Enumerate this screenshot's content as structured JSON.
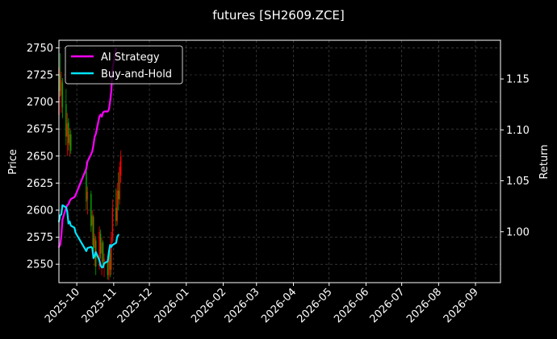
{
  "chart_data": {
    "type": "line",
    "title": "futures [SH2609.ZCE]",
    "background": "#000000",
    "x_axis": {
      "type": "date",
      "tick_labels": [
        "2025-10",
        "2025-11",
        "2025-12",
        "2026-01",
        "2026-02",
        "2026-03",
        "2026-04",
        "2026-05",
        "2026-06",
        "2026-07",
        "2026-08",
        "2026-09"
      ],
      "range": [
        "2025-09-16",
        "2026-09-22"
      ]
    },
    "y_left": {
      "label": "Price",
      "ticks": [
        2550,
        2575,
        2600,
        2625,
        2650,
        2675,
        2700,
        2725,
        2750
      ],
      "range": [
        2533,
        2757
      ]
    },
    "y_right": {
      "label": "Return",
      "ticks": [
        1.0,
        1.05,
        1.1,
        1.15
      ],
      "tick_labels": [
        "1.00",
        "1.05",
        "1.10",
        "1.15"
      ],
      "range": [
        0.95,
        1.188
      ]
    },
    "grid": true,
    "legend": {
      "position": "top-left",
      "entries": [
        "AI Strategy",
        "Buy-and-Hold"
      ]
    },
    "colors": {
      "ai_strategy": "#ff00ff",
      "buy_and_hold": "#00e5ff",
      "candle_up": "#ff0000",
      "candle_down": "#00aa00",
      "grid": "#555555"
    },
    "candles": [
      {
        "date": "2025-09-16",
        "open": 2688,
        "high": 2740,
        "low": 2680,
        "close": 2732
      },
      {
        "date": "2025-09-17",
        "open": 2725,
        "high": 2745,
        "low": 2705,
        "close": 2710
      },
      {
        "date": "2025-09-18",
        "open": 2706,
        "high": 2728,
        "low": 2690,
        "close": 2720
      },
      {
        "date": "2025-09-19",
        "open": 2718,
        "high": 2722,
        "low": 2685,
        "close": 2695
      },
      {
        "date": "2025-09-22",
        "open": 2698,
        "high": 2712,
        "low": 2660,
        "close": 2668
      },
      {
        "date": "2025-09-23",
        "open": 2668,
        "high": 2690,
        "low": 2650,
        "close": 2680
      },
      {
        "date": "2025-09-24",
        "open": 2681,
        "high": 2685,
        "low": 2655,
        "close": 2662
      },
      {
        "date": "2025-09-25",
        "open": 2660,
        "high": 2676,
        "low": 2650,
        "close": 2670
      },
      {
        "date": "2025-09-26",
        "open": 2670,
        "high": 2674,
        "low": 2652,
        "close": 2655
      },
      {
        "date": "2025-10-09",
        "open": 2640,
        "high": 2645,
        "low": 2600,
        "close": 2608
      },
      {
        "date": "2025-10-10",
        "open": 2610,
        "high": 2622,
        "low": 2596,
        "close": 2617
      },
      {
        "date": "2025-10-13",
        "open": 2615,
        "high": 2618,
        "low": 2580,
        "close": 2585
      },
      {
        "date": "2025-10-14",
        "open": 2586,
        "high": 2600,
        "low": 2568,
        "close": 2595
      },
      {
        "date": "2025-10-15",
        "open": 2594,
        "high": 2596,
        "low": 2560,
        "close": 2565
      },
      {
        "date": "2025-10-16",
        "open": 2565,
        "high": 2578,
        "low": 2548,
        "close": 2574
      },
      {
        "date": "2025-10-17",
        "open": 2572,
        "high": 2576,
        "low": 2540,
        "close": 2548
      },
      {
        "date": "2025-10-20",
        "open": 2548,
        "high": 2585,
        "low": 2545,
        "close": 2580
      },
      {
        "date": "2025-10-21",
        "open": 2578,
        "high": 2582,
        "low": 2555,
        "close": 2560
      },
      {
        "date": "2025-10-22",
        "open": 2560,
        "high": 2575,
        "low": 2540,
        "close": 2570
      },
      {
        "date": "2025-10-23",
        "open": 2570,
        "high": 2572,
        "low": 2548,
        "close": 2552
      },
      {
        "date": "2025-10-24",
        "open": 2552,
        "high": 2560,
        "low": 2538,
        "close": 2555
      },
      {
        "date": "2025-10-27",
        "open": 2555,
        "high": 2558,
        "low": 2536,
        "close": 2540
      },
      {
        "date": "2025-10-28",
        "open": 2540,
        "high": 2565,
        "low": 2535,
        "close": 2560
      },
      {
        "date": "2025-10-29",
        "open": 2560,
        "high": 2563,
        "low": 2538,
        "close": 2545
      },
      {
        "date": "2025-10-30",
        "open": 2545,
        "high": 2580,
        "low": 2540,
        "close": 2575
      },
      {
        "date": "2025-10-31",
        "open": 2574,
        "high": 2610,
        "low": 2570,
        "close": 2602
      },
      {
        "date": "2025-11-03",
        "open": 2602,
        "high": 2620,
        "low": 2585,
        "close": 2590
      },
      {
        "date": "2025-11-04",
        "open": 2590,
        "high": 2625,
        "low": 2586,
        "close": 2618
      },
      {
        "date": "2025-11-05",
        "open": 2618,
        "high": 2635,
        "low": 2600,
        "close": 2610
      },
      {
        "date": "2025-11-06",
        "open": 2610,
        "high": 2645,
        "low": 2605,
        "close": 2640
      },
      {
        "date": "2025-11-07",
        "open": 2632,
        "high": 2655,
        "low": 2625,
        "close": 2650
      }
    ],
    "series": [
      {
        "name": "AI Strategy",
        "points": [
          [
            "2025-09-16",
            0.985
          ],
          [
            "2025-09-17",
            0.987
          ],
          [
            "2025-09-18",
            0.995
          ],
          [
            "2025-09-19",
            1.012
          ],
          [
            "2025-09-22",
            1.023
          ],
          [
            "2025-09-23",
            1.026
          ],
          [
            "2025-09-24",
            1.027
          ],
          [
            "2025-09-25",
            1.03
          ],
          [
            "2025-09-26",
            1.032
          ],
          [
            "2025-09-29",
            1.034
          ],
          [
            "2025-09-30",
            1.036
          ],
          [
            "2025-10-09",
            1.062
          ],
          [
            "2025-10-10",
            1.069
          ],
          [
            "2025-10-13",
            1.076
          ],
          [
            "2025-10-14",
            1.079
          ],
          [
            "2025-10-15",
            1.085
          ],
          [
            "2025-10-16",
            1.093
          ],
          [
            "2025-10-17",
            1.096
          ],
          [
            "2025-10-20",
            1.113
          ],
          [
            "2025-10-21",
            1.115
          ],
          [
            "2025-10-22",
            1.113
          ],
          [
            "2025-10-23",
            1.117
          ],
          [
            "2025-10-24",
            1.118
          ],
          [
            "2025-10-27",
            1.118
          ],
          [
            "2025-10-28",
            1.12
          ],
          [
            "2025-10-29",
            1.128
          ],
          [
            "2025-10-30",
            1.138
          ],
          [
            "2025-10-31",
            1.16
          ],
          [
            "2025-11-03",
            1.18
          ]
        ]
      },
      {
        "name": "Buy-and-Hold",
        "points": [
          [
            "2025-09-16",
            1.01
          ],
          [
            "2025-09-17",
            1.016
          ],
          [
            "2025-09-18",
            1.017
          ],
          [
            "2025-09-19",
            1.026
          ],
          [
            "2025-09-22",
            1.024
          ],
          [
            "2025-09-23",
            1.02
          ],
          [
            "2025-09-24",
            1.008
          ],
          [
            "2025-09-25",
            1.01
          ],
          [
            "2025-09-26",
            1.006
          ],
          [
            "2025-09-29",
            1.004
          ],
          [
            "2025-09-30",
            0.999
          ],
          [
            "2025-10-09",
            0.981
          ],
          [
            "2025-10-10",
            0.984
          ],
          [
            "2025-10-13",
            0.985
          ],
          [
            "2025-10-14",
            0.984
          ],
          [
            "2025-10-15",
            0.974
          ],
          [
            "2025-10-16",
            0.976
          ],
          [
            "2025-10-17",
            0.98
          ],
          [
            "2025-10-20",
            0.972
          ],
          [
            "2025-10-21",
            0.967
          ],
          [
            "2025-10-22",
            0.965
          ],
          [
            "2025-10-23",
            0.965
          ],
          [
            "2025-10-24",
            0.969
          ],
          [
            "2025-10-27",
            0.971
          ],
          [
            "2025-10-28",
            0.98
          ],
          [
            "2025-10-29",
            0.987
          ],
          [
            "2025-10-30",
            0.985
          ],
          [
            "2025-10-31",
            0.987
          ],
          [
            "2025-11-03",
            0.989
          ],
          [
            "2025-11-04",
            0.995
          ],
          [
            "2025-11-05",
            0.997
          ]
        ]
      }
    ]
  }
}
